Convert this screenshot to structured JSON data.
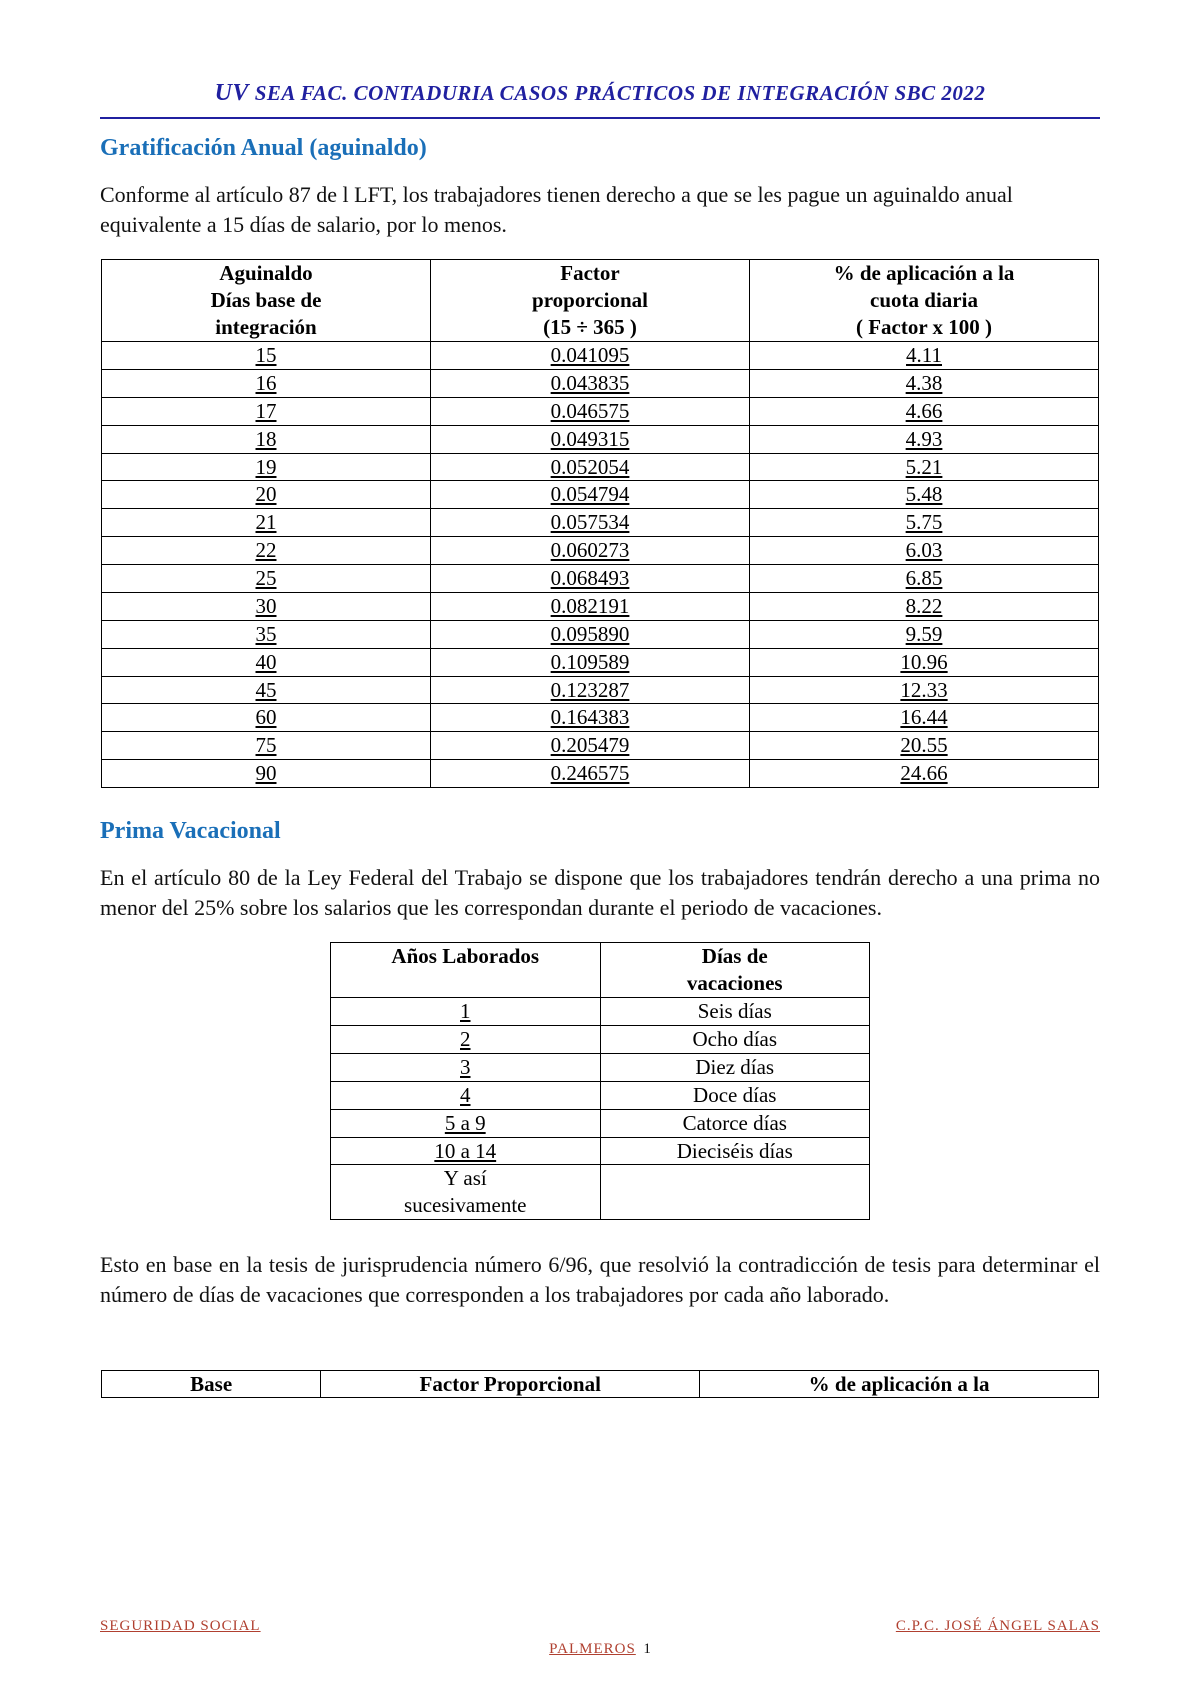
{
  "header": {
    "title_prefix": "UV",
    "title_rest": " SEA FAC.  CONTADURIA CASOS PRÁCTICOS DE INTEGRACIÓN SBC 2022"
  },
  "section1": {
    "title": "Gratificación Anual (aguinaldo)",
    "paragraph": "Conforme al artículo 87 de l LFT, los trabajadores tienen derecho a que se les pague un aguinaldo anual equivalente a 15 días de salario, por lo menos.",
    "table": {
      "headers": [
        "Aguinaldo Días base de integración",
        "Factor proporcional (15 ÷ 365 )",
        "% de aplicación a la cuota diaria ( Factor x 100 )"
      ],
      "header_lines": {
        "c1l1": "Aguinaldo",
        "c1l2": "Días base de",
        "c1l3": "integración",
        "c2l1": "Factor",
        "c2l2": "proporcional",
        "c2l3": "(15 ÷ 365 )",
        "c3l1": "% de aplicación a la",
        "c3l2": "cuota diaria",
        "c3l3": "( Factor x 100 )"
      },
      "rows": [
        [
          "15",
          "0.041095",
          "4.11"
        ],
        [
          "16",
          "0.043835",
          "4.38"
        ],
        [
          "17",
          "0.046575",
          "4.66"
        ],
        [
          "18",
          "0.049315",
          "4.93"
        ],
        [
          "19",
          "0.052054",
          "5.21"
        ],
        [
          "20",
          "0.054794",
          "5.48"
        ],
        [
          "21",
          "0.057534",
          "5.75"
        ],
        [
          "22",
          "0.060273",
          "6.03"
        ],
        [
          "25",
          "0.068493",
          "6.85"
        ],
        [
          "30",
          "0.082191",
          "8.22"
        ],
        [
          "35",
          "0.095890",
          "9.59"
        ],
        [
          "40",
          "0.109589",
          "10.96"
        ],
        [
          "45",
          "0.123287",
          "12.33"
        ],
        [
          "60",
          "0.164383",
          "16.44"
        ],
        [
          "75",
          "0.205479",
          "20.55"
        ],
        [
          "90",
          "0.246575",
          "24.66"
        ]
      ]
    }
  },
  "section2": {
    "title": "Prima Vacacional",
    "paragraph1": "En el artículo 80 de la Ley Federal del Trabajo se dispone que los trabajadores tendrán derecho a una prima no menor del 25% sobre los salarios que les correspondan durante el periodo de vacaciones.",
    "table": {
      "headers": {
        "c1": "Años Laborados",
        "c2l1": "Días de",
        "c2l2": "vacaciones"
      },
      "rows": [
        [
          "1",
          "Seis días"
        ],
        [
          "2",
          "Ocho días"
        ],
        [
          "3",
          "Diez días"
        ],
        [
          "4",
          "Doce días"
        ],
        [
          "5 a 9",
          "Catorce días"
        ],
        [
          "10 a 14",
          "Dieciséis días"
        ]
      ],
      "last_row": {
        "c1l1": "Y así",
        "c1l2": "sucesivamente",
        "c2": ""
      }
    },
    "paragraph2": "Esto en base en la tesis de jurisprudencia número 6/96, que resolvió la contradicción de tesis para determinar el número de días de vacaciones que corresponden a los trabajadores por cada año laborado."
  },
  "bottom_table": {
    "h1": "Base",
    "h2": "Factor Proporcional",
    "h3": "% de aplicación a la"
  },
  "footer": {
    "left": "SEGURIDAD SOCIAL",
    "right": "C.P.C. JOSÉ ÁNGEL SALAS",
    "center_name": "PALMEROS",
    "page_no": "1"
  },
  "colors": {
    "header_blue": "#2020a0",
    "section_blue": "#1a6fb8",
    "footer_red": "#b04030",
    "text": "#111111",
    "border": "#000000",
    "background": "#ffffff"
  },
  "fonts": {
    "body_pt": 22,
    "header_pt": 21,
    "section_pt": 24,
    "table_pt": 21,
    "footer_pt": 15
  }
}
